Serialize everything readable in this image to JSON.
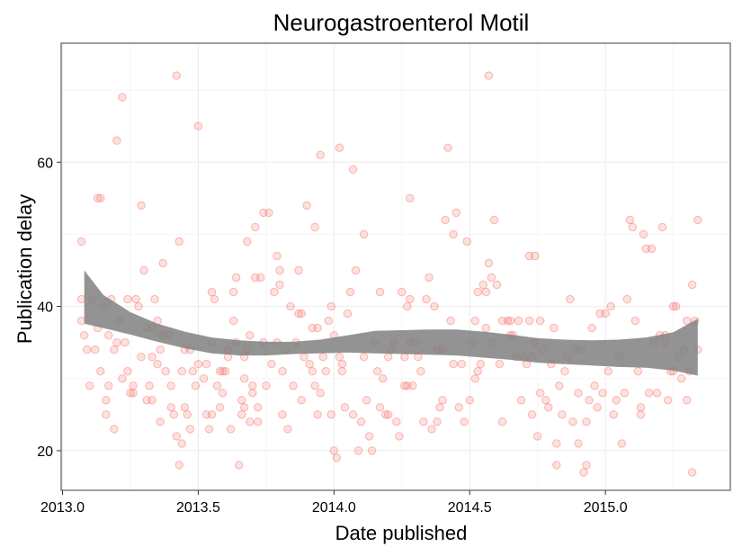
{
  "chart_data": {
    "type": "scatter",
    "title": "Neurogastroenterol Motil",
    "xlabel": "Date published",
    "ylabel": "Publication delay",
    "xlim": [
      2012.995,
      2015.46
    ],
    "ylim": [
      14.5,
      76.5
    ],
    "x_ticks": [
      2013.0,
      2013.5,
      2014.0,
      2014.5,
      2015.0
    ],
    "x_tick_labels": [
      "2013.0",
      "2013.5",
      "2014.0",
      "2014.5",
      "2015.0"
    ],
    "y_ticks": [
      20,
      40,
      60
    ],
    "y_tick_labels": [
      "20",
      "40",
      "60"
    ],
    "grid": true,
    "legend": "none",
    "colors": {
      "points": "#f8766d",
      "smooth_band": "#808080",
      "panel_border": "#7f7f7f",
      "grid_major": "#ebebeb",
      "grid_minor": "#f5f5f5"
    },
    "points": [
      [
        2013.07,
        49
      ],
      [
        2013.07,
        41
      ],
      [
        2013.07,
        38
      ],
      [
        2013.08,
        36
      ],
      [
        2013.09,
        34
      ],
      [
        2013.1,
        29
      ],
      [
        2013.11,
        41
      ],
      [
        2013.12,
        34
      ],
      [
        2013.13,
        55
      ],
      [
        2013.13,
        37
      ],
      [
        2013.14,
        31
      ],
      [
        2013.14,
        55
      ],
      [
        2013.15,
        40
      ],
      [
        2013.16,
        27
      ],
      [
        2013.16,
        25
      ],
      [
        2013.17,
        29
      ],
      [
        2013.17,
        36
      ],
      [
        2013.18,
        41
      ],
      [
        2013.19,
        34
      ],
      [
        2013.19,
        23
      ],
      [
        2013.2,
        63
      ],
      [
        2013.2,
        35
      ],
      [
        2013.21,
        38
      ],
      [
        2013.22,
        30
      ],
      [
        2013.22,
        69
      ],
      [
        2013.23,
        35
      ],
      [
        2013.24,
        41
      ],
      [
        2013.24,
        31
      ],
      [
        2013.25,
        28
      ],
      [
        2013.26,
        29
      ],
      [
        2013.26,
        28
      ],
      [
        2013.27,
        41
      ],
      [
        2013.28,
        40
      ],
      [
        2013.29,
        33
      ],
      [
        2013.29,
        54
      ],
      [
        2013.3,
        45
      ],
      [
        2013.31,
        37
      ],
      [
        2013.31,
        27
      ],
      [
        2013.32,
        29
      ],
      [
        2013.33,
        33
      ],
      [
        2013.33,
        27
      ],
      [
        2013.34,
        41
      ],
      [
        2013.35,
        38
      ],
      [
        2013.35,
        32
      ],
      [
        2013.36,
        24
      ],
      [
        2013.36,
        34
      ],
      [
        2013.37,
        36
      ],
      [
        2013.37,
        46
      ],
      [
        2013.38,
        31
      ],
      [
        2013.39,
        36
      ],
      [
        2013.4,
        29
      ],
      [
        2013.4,
        26
      ],
      [
        2013.41,
        25
      ],
      [
        2013.42,
        22
      ],
      [
        2013.42,
        72
      ],
      [
        2013.43,
        18
      ],
      [
        2013.43,
        49
      ],
      [
        2013.44,
        21
      ],
      [
        2013.44,
        31
      ],
      [
        2013.45,
        26
      ],
      [
        2013.46,
        25
      ],
      [
        2013.47,
        23
      ],
      [
        2013.47,
        34
      ],
      [
        2013.48,
        31
      ],
      [
        2013.49,
        29
      ],
      [
        2013.5,
        32
      ],
      [
        2013.5,
        65
      ],
      [
        2013.52,
        30
      ],
      [
        2013.53,
        32
      ],
      [
        2013.54,
        23
      ],
      [
        2013.55,
        42
      ],
      [
        2013.55,
        35
      ],
      [
        2013.56,
        41
      ],
      [
        2013.57,
        29
      ],
      [
        2013.58,
        26
      ],
      [
        2013.58,
        31
      ],
      [
        2013.59,
        28
      ],
      [
        2013.6,
        31
      ],
      [
        2013.61,
        34
      ],
      [
        2013.62,
        23
      ],
      [
        2013.63,
        38
      ],
      [
        2013.63,
        42
      ],
      [
        2013.64,
        35
      ],
      [
        2013.65,
        18
      ],
      [
        2013.66,
        27
      ],
      [
        2013.66,
        25
      ],
      [
        2013.67,
        26
      ],
      [
        2013.67,
        30
      ],
      [
        2013.68,
        34
      ],
      [
        2013.68,
        49
      ],
      [
        2013.69,
        36
      ],
      [
        2013.7,
        29
      ],
      [
        2013.7,
        28
      ],
      [
        2013.71,
        51
      ],
      [
        2013.71,
        44
      ],
      [
        2013.72,
        24
      ],
      [
        2013.72,
        26
      ],
      [
        2013.73,
        44
      ],
      [
        2013.74,
        35
      ],
      [
        2013.74,
        53
      ],
      [
        2013.75,
        29
      ],
      [
        2013.76,
        53
      ],
      [
        2013.77,
        32
      ],
      [
        2013.78,
        42
      ],
      [
        2013.79,
        47
      ],
      [
        2013.79,
        35
      ],
      [
        2013.8,
        45
      ],
      [
        2013.8,
        43
      ],
      [
        2013.81,
        31
      ],
      [
        2013.81,
        25
      ],
      [
        2013.82,
        34
      ],
      [
        2013.83,
        23
      ],
      [
        2013.84,
        40
      ],
      [
        2013.85,
        29
      ],
      [
        2013.86,
        35
      ],
      [
        2013.87,
        39
      ],
      [
        2013.87,
        45
      ],
      [
        2013.88,
        27
      ],
      [
        2013.89,
        33
      ],
      [
        2013.9,
        54
      ],
      [
        2013.91,
        32
      ],
      [
        2013.92,
        31
      ],
      [
        2013.92,
        37
      ],
      [
        2013.93,
        51
      ],
      [
        2013.93,
        29
      ],
      [
        2013.94,
        25
      ],
      [
        2013.95,
        61
      ],
      [
        2013.95,
        28
      ],
      [
        2013.96,
        33
      ],
      [
        2013.97,
        31
      ],
      [
        2013.98,
        38
      ],
      [
        2013.99,
        40
      ],
      [
        2013.99,
        25
      ],
      [
        2014.0,
        20
      ],
      [
        2014.01,
        19
      ],
      [
        2014.02,
        62
      ],
      [
        2014.02,
        33
      ],
      [
        2014.03,
        31
      ],
      [
        2014.04,
        26
      ],
      [
        2014.05,
        39
      ],
      [
        2014.06,
        42
      ],
      [
        2014.07,
        25
      ],
      [
        2014.07,
        59
      ],
      [
        2014.08,
        45
      ],
      [
        2014.09,
        20
      ],
      [
        2014.1,
        24
      ],
      [
        2014.11,
        50
      ],
      [
        2014.11,
        33
      ],
      [
        2014.12,
        27
      ],
      [
        2014.13,
        22
      ],
      [
        2014.14,
        20
      ],
      [
        2014.15,
        35
      ],
      [
        2014.16,
        31
      ],
      [
        2014.17,
        42
      ],
      [
        2014.17,
        26
      ],
      [
        2014.19,
        25
      ],
      [
        2014.2,
        25
      ],
      [
        2014.21,
        34
      ],
      [
        2014.22,
        35
      ],
      [
        2014.23,
        24
      ],
      [
        2014.24,
        22
      ],
      [
        2014.25,
        42
      ],
      [
        2014.26,
        29
      ],
      [
        2014.27,
        40
      ],
      [
        2014.28,
        55
      ],
      [
        2014.28,
        41
      ],
      [
        2014.29,
        29
      ],
      [
        2014.3,
        35
      ],
      [
        2014.31,
        33
      ],
      [
        2014.32,
        31
      ],
      [
        2014.33,
        24
      ],
      [
        2014.34,
        41
      ],
      [
        2014.35,
        44
      ],
      [
        2014.36,
        23
      ],
      [
        2014.37,
        40
      ],
      [
        2014.38,
        24
      ],
      [
        2014.38,
        34
      ],
      [
        2014.39,
        26
      ],
      [
        2014.4,
        27
      ],
      [
        2014.41,
        52
      ],
      [
        2014.42,
        62
      ],
      [
        2014.43,
        38
      ],
      [
        2014.44,
        50
      ],
      [
        2014.44,
        32
      ],
      [
        2014.45,
        53
      ],
      [
        2014.46,
        26
      ],
      [
        2014.47,
        32
      ],
      [
        2014.48,
        24
      ],
      [
        2014.49,
        49
      ],
      [
        2014.5,
        27
      ],
      [
        2014.51,
        35
      ],
      [
        2014.52,
        30
      ],
      [
        2014.52,
        38
      ],
      [
        2014.53,
        31
      ],
      [
        2014.53,
        42
      ],
      [
        2014.54,
        32
      ],
      [
        2014.55,
        43
      ],
      [
        2014.56,
        37
      ],
      [
        2014.57,
        72
      ],
      [
        2014.57,
        46
      ],
      [
        2014.58,
        35
      ],
      [
        2014.59,
        52
      ],
      [
        2014.6,
        43
      ],
      [
        2014.61,
        32
      ],
      [
        2014.62,
        24
      ],
      [
        2014.62,
        38
      ],
      [
        2014.64,
        38
      ],
      [
        2014.65,
        38
      ],
      [
        2014.66,
        36
      ],
      [
        2014.67,
        33
      ],
      [
        2014.68,
        38
      ],
      [
        2014.69,
        27
      ],
      [
        2014.7,
        33
      ],
      [
        2014.71,
        32
      ],
      [
        2014.72,
        47
      ],
      [
        2014.72,
        38
      ],
      [
        2014.73,
        25
      ],
      [
        2014.73,
        33
      ],
      [
        2014.74,
        47
      ],
      [
        2014.75,
        22
      ],
      [
        2014.76,
        38
      ],
      [
        2014.76,
        28
      ],
      [
        2014.77,
        34
      ],
      [
        2014.78,
        27
      ],
      [
        2014.79,
        26
      ],
      [
        2014.8,
        32
      ],
      [
        2014.81,
        37
      ],
      [
        2014.82,
        18
      ],
      [
        2014.82,
        21
      ],
      [
        2014.83,
        29
      ],
      [
        2014.84,
        25
      ],
      [
        2014.85,
        31
      ],
      [
        2014.86,
        33
      ],
      [
        2014.87,
        41
      ],
      [
        2014.88,
        24
      ],
      [
        2014.89,
        34
      ],
      [
        2014.9,
        28
      ],
      [
        2014.9,
        21
      ],
      [
        2014.91,
        34
      ],
      [
        2014.92,
        17
      ],
      [
        2014.93,
        24
      ],
      [
        2014.93,
        18
      ],
      [
        2014.94,
        27
      ],
      [
        2014.95,
        37
      ],
      [
        2014.96,
        29
      ],
      [
        2014.97,
        26
      ],
      [
        2014.98,
        39
      ],
      [
        2014.99,
        28
      ],
      [
        2015.0,
        39
      ],
      [
        2015.01,
        31
      ],
      [
        2015.02,
        40
      ],
      [
        2015.03,
        25
      ],
      [
        2015.04,
        27
      ],
      [
        2015.05,
        33
      ],
      [
        2015.06,
        21
      ],
      [
        2015.07,
        28
      ],
      [
        2015.08,
        41
      ],
      [
        2015.09,
        52
      ],
      [
        2015.1,
        51
      ],
      [
        2015.11,
        38
      ],
      [
        2015.12,
        31
      ],
      [
        2015.13,
        25
      ],
      [
        2015.14,
        50
      ],
      [
        2015.15,
        48
      ],
      [
        2015.16,
        28
      ],
      [
        2015.17,
        48
      ],
      [
        2015.18,
        35
      ],
      [
        2015.19,
        28
      ],
      [
        2015.2,
        36
      ],
      [
        2015.21,
        51
      ],
      [
        2015.22,
        35
      ],
      [
        2015.23,
        27
      ],
      [
        2015.24,
        31
      ],
      [
        2015.25,
        40
      ],
      [
        2015.26,
        40
      ],
      [
        2015.27,
        33
      ],
      [
        2015.28,
        30
      ],
      [
        2015.29,
        34
      ],
      [
        2015.3,
        27
      ],
      [
        2015.3,
        38
      ],
      [
        2015.31,
        31
      ],
      [
        2015.32,
        17
      ],
      [
        2015.32,
        43
      ],
      [
        2015.33,
        38
      ],
      [
        2015.34,
        52
      ],
      [
        2015.34,
        34
      ],
      [
        2015.13,
        26
      ],
      [
        2015.22,
        36
      ],
      [
        2015.25,
        31
      ],
      [
        2014.56,
        42
      ],
      [
        2014.4,
        34
      ],
      [
        2014.26,
        33
      ],
      [
        2014.27,
        29
      ],
      [
        2014.18,
        30
      ],
      [
        2014.28,
        35
      ],
      [
        2013.67,
        33
      ],
      [
        2013.88,
        39
      ],
      [
        2013.59,
        31
      ],
      [
        2013.45,
        34
      ],
      [
        2013.33,
        37
      ],
      [
        2013.53,
        25
      ],
      [
        2013.69,
        24
      ],
      [
        2013.64,
        44
      ],
      [
        2013.55,
        25
      ],
      [
        2013.61,
        33
      ],
      [
        2013.94,
        37
      ],
      [
        2014.2,
        33
      ],
      [
        2014.0,
        36
      ],
      [
        2014.03,
        32
      ],
      [
        2014.65,
        36
      ],
      [
        2014.74,
        35
      ],
      [
        2014.58,
        44
      ]
    ],
    "smooth": {
      "x": [
        2013.08,
        2013.15,
        2013.25,
        2013.35,
        2013.45,
        2013.55,
        2013.65,
        2013.75,
        2013.85,
        2013.95,
        2014.05,
        2014.15,
        2014.25,
        2014.35,
        2014.45,
        2014.55,
        2014.65,
        2014.75,
        2014.85,
        2014.95,
        2015.05,
        2015.15,
        2015.25,
        2015.34
      ],
      "lower": [
        37.6,
        37.0,
        36.1,
        35.1,
        34.2,
        33.5,
        33.2,
        33.2,
        33.4,
        33.5,
        33.6,
        33.5,
        33.4,
        33.3,
        33.2,
        32.9,
        32.6,
        32.2,
        32.0,
        31.8,
        31.6,
        31.5,
        31.1,
        30.4
      ],
      "upper": [
        45.0,
        41.6,
        39.2,
        37.6,
        36.5,
        35.7,
        35.3,
        35.1,
        35.1,
        35.4,
        36.0,
        36.6,
        36.7,
        36.8,
        36.8,
        36.5,
        36.1,
        35.6,
        35.4,
        35.3,
        35.4,
        35.7,
        36.4,
        38.3
      ]
    }
  }
}
